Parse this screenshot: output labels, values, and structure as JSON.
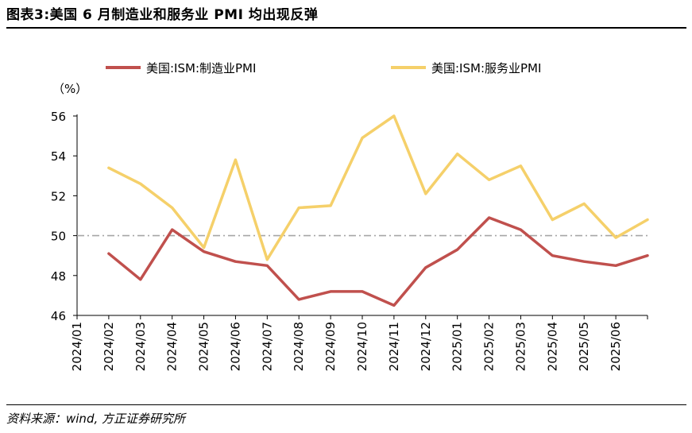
{
  "header": {
    "title": "图表3:美国 6 月制造业和服务业 PMI 均出现反弹"
  },
  "footer": {
    "source": "资料来源：wind, 方正证券研究所"
  },
  "chart_data": {
    "type": "line",
    "ylabel": "（%）",
    "ylim": [
      46,
      56
    ],
    "yticks": [
      46,
      48,
      50,
      52,
      54,
      56
    ],
    "reference_line": 50,
    "legend_position": "top",
    "categories": [
      "2024/01",
      "2024/02",
      "2024/03",
      "2024/04",
      "2024/05",
      "2024/06",
      "2024/07",
      "2024/08",
      "2024/09",
      "2024/10",
      "2024/11",
      "2024/12",
      "2025/01",
      "2025/02",
      "2025/03",
      "2025/04",
      "2025/05",
      "2025/06"
    ],
    "series": [
      {
        "name": "美国:ISM:制造业PMI",
        "color": "#c0504d",
        "values": [
          49.1,
          47.8,
          50.3,
          49.2,
          48.7,
          48.5,
          46.8,
          47.2,
          47.2,
          46.5,
          48.4,
          49.3,
          50.9,
          50.3,
          49.0,
          48.7,
          48.5,
          49.0
        ]
      },
      {
        "name": "美国:ISM:服务业PMI",
        "color": "#f5d06a",
        "values": [
          53.4,
          52.6,
          51.4,
          49.4,
          53.8,
          48.8,
          51.4,
          51.5,
          54.9,
          56.0,
          52.1,
          54.1,
          52.8,
          53.5,
          50.8,
          51.6,
          49.9,
          50.8
        ]
      }
    ]
  }
}
